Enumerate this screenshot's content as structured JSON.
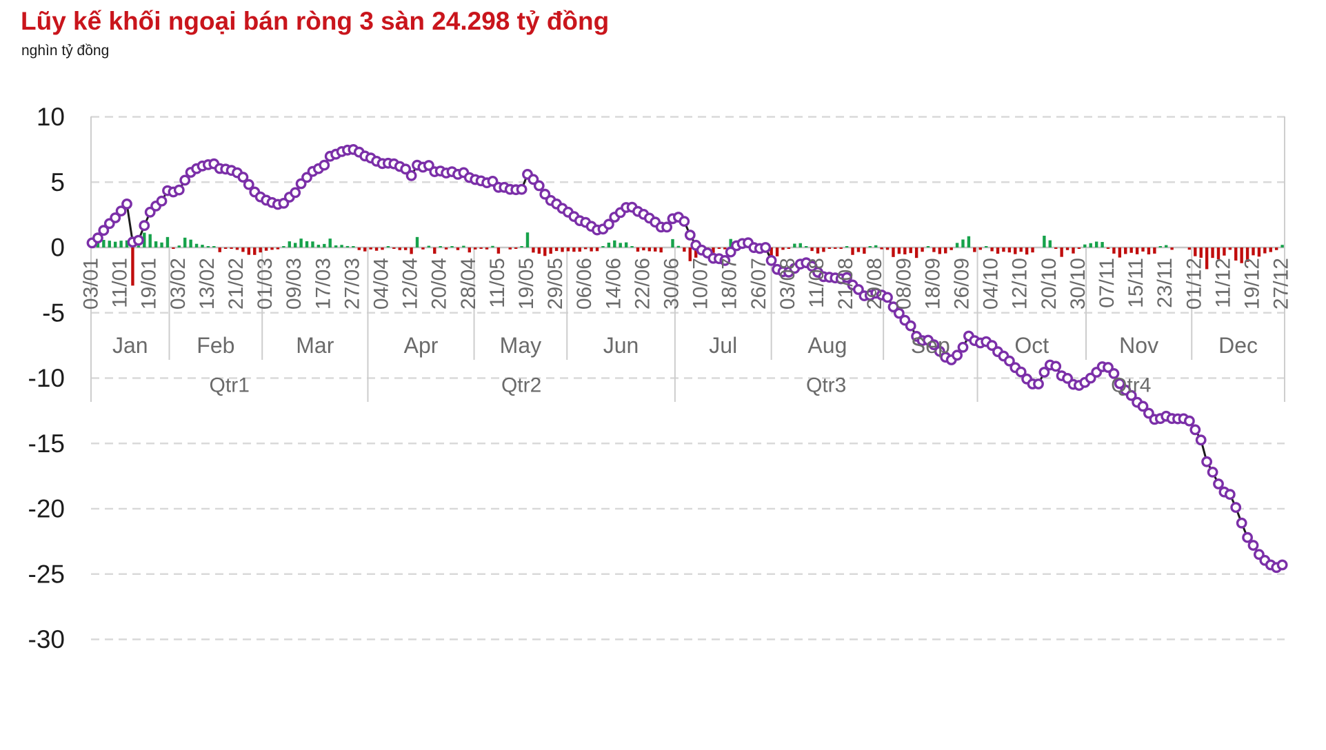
{
  "title": "Lũy kế khối ngoại bán ròng 3 sàn 24.298 tỷ đồng",
  "subtitle": "nghìn tỷ đồng",
  "colors": {
    "title": "#c9151c",
    "subtitle": "#1a1a1a",
    "background": "#ffffff",
    "line": "#1b1b1b",
    "marker_stroke": "#7b2fa8",
    "marker_fill": "#ffffff",
    "bar_positive": "#17a24b",
    "bar_negative": "#c00d0d",
    "gridline": "#d9d9d9",
    "axis_line": "#c6c6c6",
    "separator": "#cdcdcd",
    "date_label": "#6a6a6a",
    "month_label": "#6a6a6a",
    "quarter_label": "#6a6a6a",
    "y_label": "#1c1c1c"
  },
  "chart_data": {
    "type": "line+bar",
    "title": "Lũy kế khối ngoại bán ròng 3 sàn 24.298 tỷ đồng",
    "unit_label": "nghìn tỷ đồng",
    "grid": true,
    "legend": false,
    "ylim": [
      -30,
      10
    ],
    "y_ticks": [
      10,
      5,
      0,
      -5,
      -10,
      -15,
      -20,
      -25,
      -30
    ],
    "x_tick_labels": [
      "03/01",
      "11/01",
      "19/01",
      "03/02",
      "13/02",
      "21/02",
      "01/03",
      "09/03",
      "17/03",
      "27/03",
      "04/04",
      "12/04",
      "20/04",
      "28/04",
      "11/05",
      "19/05",
      "29/05",
      "06/06",
      "14/06",
      "22/06",
      "30/06",
      "10/07",
      "18/07",
      "26/07",
      "03/08",
      "11/08",
      "21/08",
      "29/08",
      "08/09",
      "18/09",
      "26/09",
      "04/10",
      "12/10",
      "20/10",
      "30/10",
      "07/11",
      "15/11",
      "23/11",
      "01/12",
      "11/12",
      "19/12",
      "27/12"
    ],
    "points_per_tick": 5,
    "x_tick_label_rotation": -90,
    "months": [
      "Jan",
      "Feb",
      "Mar",
      "Apr",
      "May",
      "Jun",
      "Jul",
      "Aug",
      "Sep",
      "Oct",
      "Nov",
      "Dec"
    ],
    "quarters": [
      "Qtr1",
      "Qtr2",
      "Qtr3",
      "Qtr4"
    ],
    "month_boundaries_idx": [
      -0.18,
      13.3,
      29.3,
      47.5,
      65.8,
      81.8,
      100.4,
      117.0,
      136.3,
      152.5,
      171.2,
      189.4,
      205.4
    ],
    "quarter_boundary_positions": [
      0,
      3,
      6,
      9,
      12
    ],
    "series": [
      {
        "name": "cumulative-net-foreign-value",
        "type": "line",
        "values": [
          0.35,
          0.73,
          1.31,
          1.83,
          2.27,
          2.79,
          3.33,
          0.41,
          0.55,
          1.68,
          2.7,
          3.17,
          3.55,
          4.35,
          4.25,
          4.4,
          5.15,
          5.75,
          6.03,
          6.24,
          6.34,
          6.4,
          6.04,
          6.0,
          5.9,
          5.72,
          5.38,
          4.82,
          4.25,
          3.87,
          3.62,
          3.44,
          3.3,
          3.38,
          3.85,
          4.2,
          4.88,
          5.36,
          5.82,
          6.03,
          6.3,
          6.98,
          7.14,
          7.34,
          7.45,
          7.5,
          7.3,
          7.0,
          6.85,
          6.6,
          6.42,
          6.45,
          6.4,
          6.2,
          6.0,
          5.5,
          6.3,
          6.15,
          6.28,
          5.8,
          5.85,
          5.7,
          5.8,
          5.6,
          5.73,
          5.35,
          5.2,
          5.1,
          4.95,
          5.07,
          4.6,
          4.6,
          4.45,
          4.42,
          4.45,
          5.6,
          5.21,
          4.73,
          4.08,
          3.6,
          3.33,
          2.99,
          2.7,
          2.37,
          2.05,
          1.92,
          1.62,
          1.34,
          1.41,
          1.78,
          2.32,
          2.67,
          3.06,
          3.08,
          2.76,
          2.54,
          2.25,
          1.94,
          1.56,
          1.56,
          2.2,
          2.32,
          2.0,
          0.95,
          0.17,
          -0.2,
          -0.42,
          -0.83,
          -0.86,
          -1.0,
          -0.35,
          0.13,
          0.3,
          0.36,
          -0.01,
          -0.08,
          0.0,
          -1.0,
          -1.68,
          -1.86,
          -1.89,
          -1.6,
          -1.27,
          -1.17,
          -1.44,
          -1.9,
          -2.24,
          -2.28,
          -2.33,
          -2.4,
          -2.3,
          -2.87,
          -3.22,
          -3.7,
          -3.67,
          -3.5,
          -3.64,
          -3.82,
          -4.55,
          -5.04,
          -5.57,
          -6.0,
          -6.8,
          -7.13,
          -7.1,
          -7.45,
          -7.95,
          -8.4,
          -8.6,
          -8.25,
          -7.64,
          -6.78,
          -7.13,
          -7.31,
          -7.21,
          -7.5,
          -7.98,
          -8.31,
          -8.69,
          -9.2,
          -9.53,
          -10.07,
          -10.45,
          -10.45,
          -9.55,
          -9.0,
          -9.1,
          -9.82,
          -10.02,
          -10.48,
          -10.56,
          -10.33,
          -10.0,
          -9.55,
          -9.13,
          -9.18,
          -9.65,
          -10.42,
          -10.92,
          -11.33,
          -11.85,
          -12.16,
          -12.69,
          -13.16,
          -13.1,
          -12.92,
          -13.1,
          -13.12,
          -13.11,
          -13.28,
          -13.95,
          -14.74,
          -16.4,
          -17.2,
          -18.1,
          -18.72,
          -18.9,
          -19.9,
          -21.1,
          -22.2,
          -22.8,
          -23.5,
          -23.95,
          -24.3,
          -24.5,
          -24.3
        ]
      },
      {
        "name": "daily-net-foreign-value",
        "type": "bar",
        "derived_from": "diff-of-cumulative-series"
      }
    ]
  }
}
